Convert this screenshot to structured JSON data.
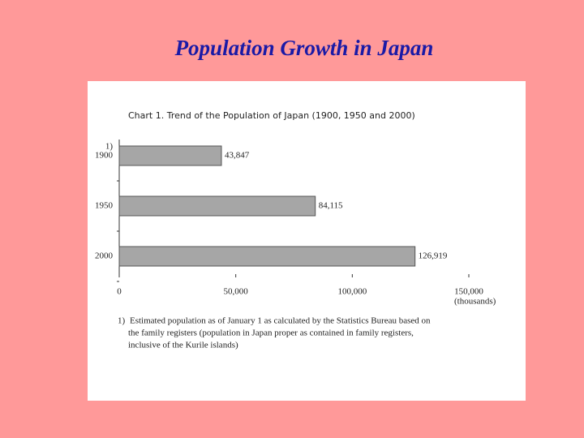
{
  "slide_title": "Population Growth in Japan",
  "chart_data": {
    "type": "bar",
    "orientation": "horizontal",
    "title": "Chart 1. Trend of the Population of Japan (1900, 1950 and 2000)",
    "categories": [
      "1900",
      "1950",
      "2000"
    ],
    "category_marker": "1)",
    "values": [
      43847,
      84115,
      126919
    ],
    "value_labels": [
      "43,847",
      "84,115",
      "126,919"
    ],
    "color": "#a6a6a6",
    "xlim": [
      0,
      150000
    ],
    "xticks": [
      0,
      {
        "value": 50000,
        "label": "50,000"
      },
      {
        "value": 100000,
        "label": "100,000"
      },
      {
        "value": 150000,
        "label": "150,000"
      }
    ],
    "x_unit": "(thousands)",
    "footnote_marker": "1)",
    "footnote_lines": [
      "Estimated population as of January 1 as calculated by the Statistics Bureau based on",
      "the family registers (population in Japan proper as contained in family registers,",
      "inclusive of the Kurile islands)"
    ]
  }
}
